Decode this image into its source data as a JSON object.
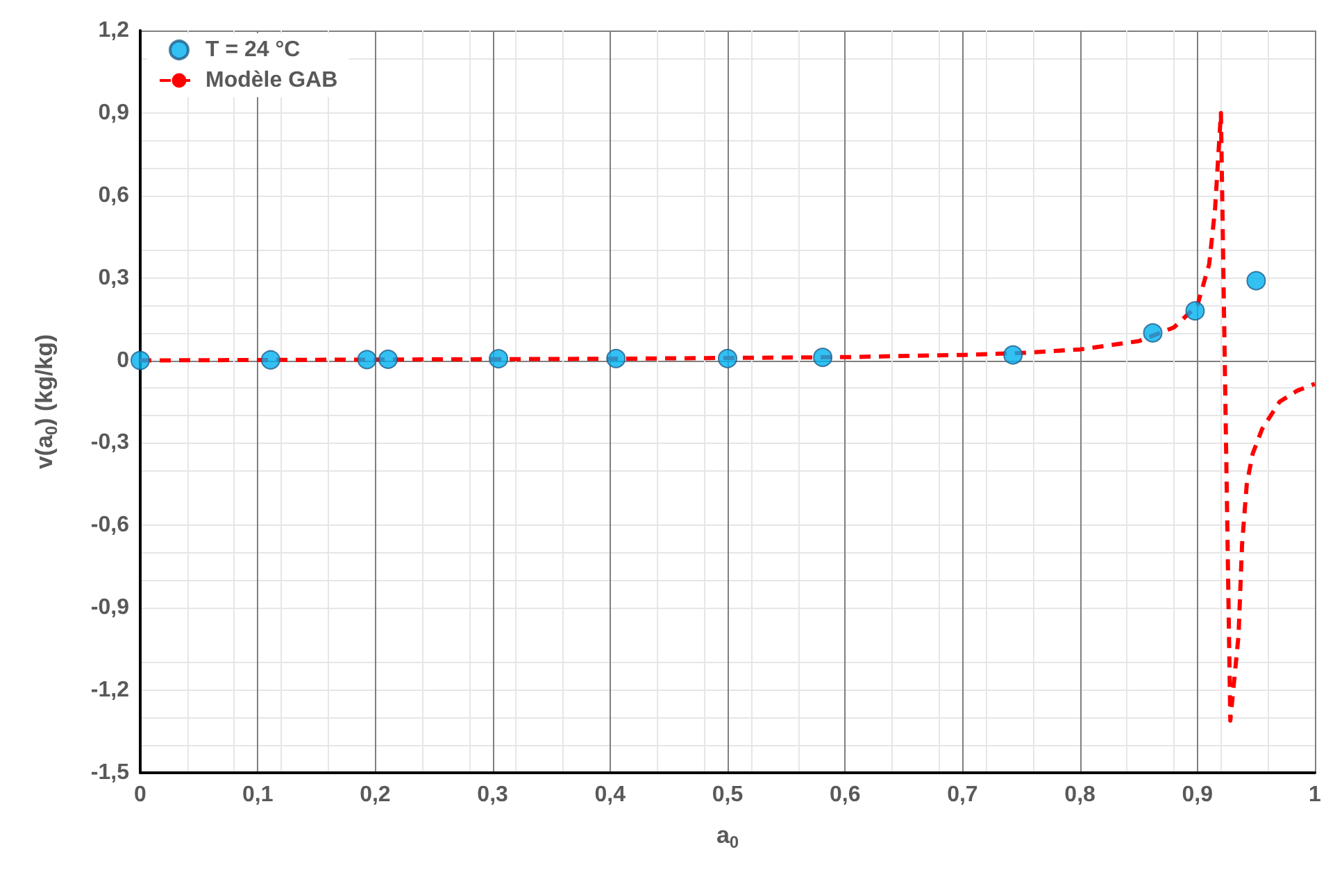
{
  "chart_data": {
    "type": "scatter",
    "xlabel": "a$_{0}$",
    "ylabel": "v(a$_{0}$) (kg/kg)",
    "xlim": [
      0,
      1
    ],
    "xticks": [
      0,
      {
        "value": 0.1,
        "label": "0,1"
      },
      {
        "value": 0.2,
        "label": "0,2"
      },
      {
        "value": 0.3,
        "label": "0,3"
      },
      {
        "value": 0.4,
        "label": "0,4"
      },
      {
        "value": 0.5,
        "label": "0,5"
      },
      {
        "value": 0.6,
        "label": "0,6"
      },
      {
        "value": 0.7,
        "label": "0,7"
      },
      {
        "value": 0.8,
        "label": "0,8"
      },
      {
        "value": 0.9,
        "label": "0,9"
      },
      1
    ],
    "ylim": [
      -1.5,
      1.2
    ],
    "yticks": [
      {
        "value": -1.5,
        "label": "-1,5"
      },
      {
        "value": -1.2,
        "label": "-1,2"
      },
      {
        "value": -0.9,
        "label": "-0,9"
      },
      {
        "value": -0.6,
        "label": "-0,6"
      },
      {
        "value": -0.3,
        "label": "-0,3"
      },
      0,
      {
        "value": 0.3,
        "label": "0,3"
      },
      {
        "value": 0.6,
        "label": "0,6"
      },
      {
        "value": 0.9,
        "label": "0,9"
      },
      {
        "value": 1.2,
        "label": "1,2"
      }
    ],
    "grid": true,
    "legend": "top left",
    "series": [
      {
        "name": "T = 24 °C",
        "marker": "circle",
        "color": "#00b0f0",
        "x": [
          0,
          0.111,
          0.193,
          0.211,
          0.305,
          0.405,
          0.5,
          0.581,
          0.743,
          0.862,
          0.898,
          0.95
        ],
        "values": [
          0,
          0.002,
          0.003,
          0.004,
          0.006,
          0.007,
          0.007,
          0.011,
          0.02,
          0.1,
          0.18,
          0.29
        ]
      },
      {
        "name": "Modèle GAB",
        "type": "line",
        "marker": "none",
        "line_style": "dashed",
        "color": "#ff0000",
        "x": [
          0,
          0.2,
          0.4,
          0.6,
          0.7,
          0.75,
          0.8,
          0.85,
          0.88,
          0.9,
          0.91,
          0.915,
          0.92,
          0.928,
          0.935,
          0.938,
          0.942,
          0.947,
          0.955,
          0.97,
          0.985,
          1.0
        ],
        "values": [
          0,
          0.003,
          0.006,
          0.012,
          0.02,
          0.027,
          0.04,
          0.07,
          0.12,
          0.2,
          0.35,
          0.55,
          0.9,
          -1.31,
          -1.0,
          -0.67,
          -0.45,
          -0.34,
          -0.25,
          -0.15,
          -0.11,
          -0.085
        ]
      }
    ]
  }
}
